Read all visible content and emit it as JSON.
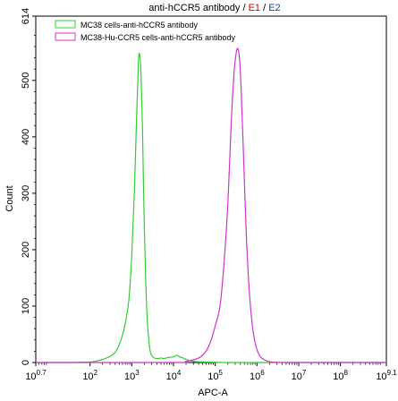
{
  "chart_data": {
    "type": "line",
    "title_parts": [
      {
        "text": "anti-hCCR5 antibody / ",
        "color": "#000000"
      },
      {
        "text": "E1",
        "color": "#cc0000"
      },
      {
        "text": " / ",
        "color": "#000000"
      },
      {
        "text": "E2",
        "color": "#1a3fa0"
      }
    ],
    "xlabel": "APC-A",
    "ylabel": "Count",
    "x_scale": "log",
    "xlim": [
      5.01,
      1260000000.0
    ],
    "ylim": [
      0,
      614
    ],
    "x_ticks": [
      {
        "base": "10",
        "exp": "0.7",
        "value": 5.01
      },
      {
        "base": "10",
        "exp": "2",
        "value": 100
      },
      {
        "base": "10",
        "exp": "3",
        "value": 1000
      },
      {
        "base": "10",
        "exp": "4",
        "value": 10000
      },
      {
        "base": "10",
        "exp": "5",
        "value": 100000
      },
      {
        "base": "10",
        "exp": "6",
        "value": 1000000
      },
      {
        "base": "10",
        "exp": "7",
        "value": 10000000
      },
      {
        "base": "10",
        "exp": "8",
        "value": 100000000
      },
      {
        "base": "10",
        "exp": "9.1",
        "value": 1260000000
      }
    ],
    "y_ticks": [
      "0",
      "100",
      "200",
      "300",
      "400",
      "500",
      "614"
    ],
    "y_tick_values": [
      0,
      100,
      200,
      300,
      400,
      500,
      614
    ],
    "legend_position": "top-left",
    "series": [
      {
        "name": "MC38 cells-anti-hCCR5 antibody",
        "color": "#33cc33",
        "x": [
          5.01,
          30,
          100,
          150,
          250,
          400,
          550,
          700,
          850,
          1000,
          1150,
          1300,
          1450,
          1550,
          1650,
          1800,
          2000,
          2300,
          2700,
          3200,
          4000,
          5000,
          6000,
          7500,
          10000,
          12000,
          14000,
          17000,
          21000,
          30000,
          50000,
          200000,
          1000000,
          10000000,
          100000000,
          1260000000
        ],
        "y": [
          0,
          0,
          1,
          3,
          8,
          18,
          40,
          70,
          110,
          190,
          300,
          430,
          535,
          545,
          520,
          420,
          240,
          90,
          25,
          10,
          7,
          8,
          7,
          9,
          10,
          13,
          10,
          8,
          5,
          2,
          1,
          0,
          0,
          0,
          0,
          0
        ]
      },
      {
        "name": "MC38-Hu-CCR5 cells-anti-hCCR5 antibody",
        "color": "#cc33cc",
        "x": [
          5.01,
          10000,
          20000,
          40000,
          60000,
          80000,
          100000,
          130000,
          160000,
          200000,
          240000,
          280000,
          320000,
          350000,
          380000,
          420000,
          480000,
          560000,
          680000,
          850000,
          1100000,
          1500000,
          2200000,
          4000000,
          10000000,
          100000000,
          1260000000
        ],
        "y": [
          0,
          0,
          2,
          8,
          20,
          40,
          65,
          100,
          170,
          280,
          420,
          510,
          550,
          556,
          540,
          480,
          360,
          220,
          110,
          45,
          15,
          5,
          1,
          0,
          0,
          0,
          0
        ]
      }
    ]
  }
}
